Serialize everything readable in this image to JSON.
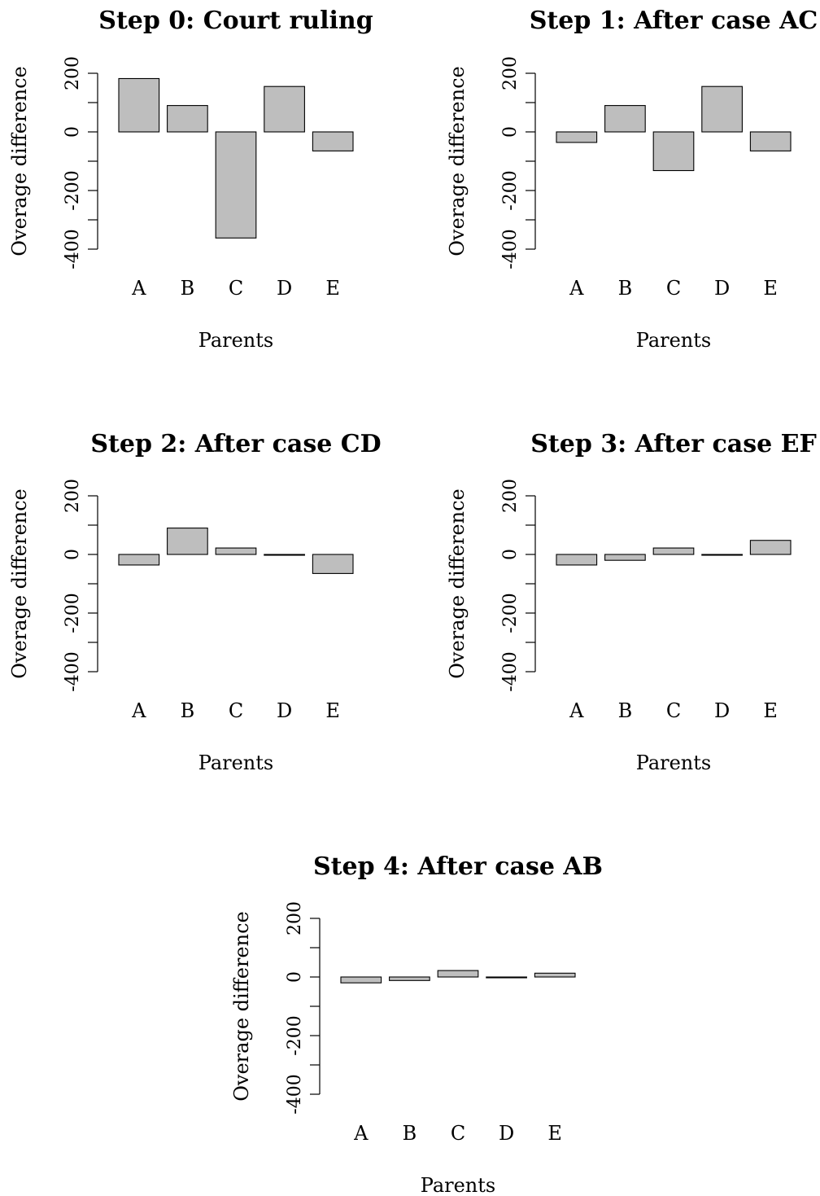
{
  "chart_data": [
    {
      "type": "bar",
      "title": "Step 0: Court ruling",
      "xlabel": "Parents",
      "ylabel": "Overage difference",
      "categories": [
        "A",
        "B",
        "C",
        "D",
        "E"
      ],
      "values": [
        182,
        90,
        -362,
        155,
        -65
      ],
      "ylim": [
        -400,
        200
      ],
      "yticks": [
        -400,
        -200,
        0,
        200
      ],
      "grid": false
    },
    {
      "type": "bar",
      "title": "Step 1: After case AC",
      "xlabel": "Parents",
      "ylabel": "Overage difference",
      "categories": [
        "A",
        "B",
        "C",
        "D",
        "E"
      ],
      "values": [
        -36,
        90,
        -132,
        155,
        -65
      ],
      "ylim": [
        -400,
        200
      ],
      "yticks": [
        -400,
        -200,
        0,
        200
      ],
      "grid": false
    },
    {
      "type": "bar",
      "title": "Step 2: After case CD",
      "xlabel": "Parents",
      "ylabel": "Overage difference",
      "categories": [
        "A",
        "B",
        "C",
        "D",
        "E"
      ],
      "values": [
        -36,
        90,
        22,
        0,
        -65
      ],
      "ylim": [
        -400,
        200
      ],
      "yticks": [
        -400,
        -200,
        0,
        200
      ],
      "grid": false
    },
    {
      "type": "bar",
      "title": "Step 3: After case EF",
      "xlabel": "Parents",
      "ylabel": "Overage difference",
      "categories": [
        "A",
        "B",
        "C",
        "D",
        "E"
      ],
      "values": [
        -36,
        -20,
        22,
        0,
        48
      ],
      "ylim": [
        -400,
        200
      ],
      "yticks": [
        -400,
        -200,
        0,
        200
      ],
      "grid": false
    },
    {
      "type": "bar",
      "title": "Step 4: After case AB",
      "xlabel": "Parents",
      "ylabel": "Overage difference",
      "categories": [
        "A",
        "B",
        "C",
        "D",
        "E"
      ],
      "values": [
        -20,
        -12,
        22,
        0,
        13
      ],
      "ylim": [
        -400,
        200
      ],
      "yticks": [
        -400,
        -200,
        0,
        200
      ],
      "grid": false
    }
  ],
  "colors": {
    "bar_fill": "#bebebe",
    "bar_stroke": "#000000"
  }
}
